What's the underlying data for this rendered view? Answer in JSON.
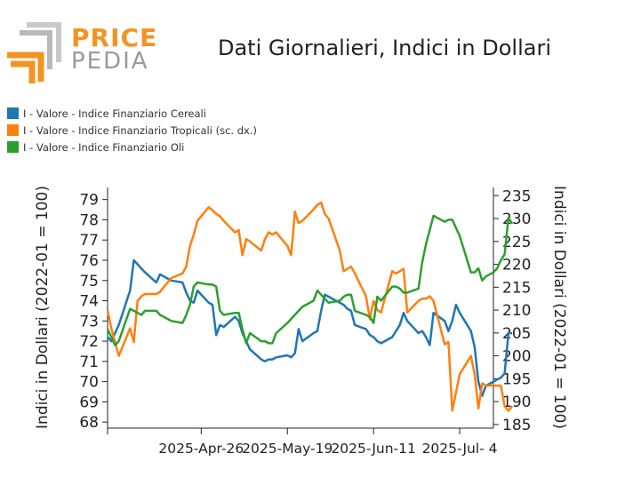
{
  "logo": {
    "word1": "PRICE",
    "word2": "PEDIA"
  },
  "colors": {
    "series1": "#1f77b4",
    "series2": "#ff7f0e",
    "series3": "#2ca02c",
    "logo_orange": "#f29422",
    "logo_grey": "#9a9a9a"
  },
  "chart_data": {
    "type": "line",
    "title": "Dati Giornalieri, Indici in Dollari",
    "ylabel": "Indici in Dollari (2022-01 = 100)",
    "y2label": "Indici in Dollari (2022-01 = 100)",
    "ylim": [
      67.7,
      79.6
    ],
    "y2lim": [
      184.2,
      236.8
    ],
    "yticks": [
      68,
      69,
      70,
      71,
      72,
      73,
      74,
      75,
      76,
      77,
      78,
      79
    ],
    "y2ticks": [
      185,
      190,
      195,
      200,
      205,
      210,
      215,
      220,
      225,
      230,
      235
    ],
    "xlim": [
      "2025-04-01",
      "2025-07-13"
    ],
    "xticks": [
      {
        "date": "2025-04-26",
        "label": "2025-Apr-26"
      },
      {
        "date": "2025-05-19",
        "label": "2025-May-19"
      },
      {
        "date": "2025-06-11",
        "label": "2025-Jun-11"
      },
      {
        "date": "2025-07-04",
        "label": "2025-Jul- 4"
      }
    ],
    "legend_position": "top-left",
    "series": [
      {
        "name": "I - Valore - Indice Finanziario Cereali",
        "color": "#1f77b4",
        "axis": "left",
        "points": [
          [
            "2025-04-01",
            72.2
          ],
          [
            "2025-04-02",
            72.0
          ],
          [
            "2025-04-03",
            72.4
          ],
          [
            "2025-04-04",
            72.8
          ],
          [
            "2025-04-07",
            74.5
          ],
          [
            "2025-04-08",
            76.0
          ],
          [
            "2025-04-09",
            75.8
          ],
          [
            "2025-04-10",
            75.6
          ],
          [
            "2025-04-11",
            75.4
          ],
          [
            "2025-04-14",
            74.9
          ],
          [
            "2025-04-15",
            75.3
          ],
          [
            "2025-04-16",
            75.2
          ],
          [
            "2025-04-17",
            75.1
          ],
          [
            "2025-04-18",
            75.0
          ],
          [
            "2025-04-21",
            74.9
          ],
          [
            "2025-04-22",
            74.4
          ],
          [
            "2025-04-23",
            74.0
          ],
          [
            "2025-04-24",
            73.9
          ],
          [
            "2025-04-25",
            74.5
          ],
          [
            "2025-04-28",
            73.9
          ],
          [
            "2025-04-29",
            73.8
          ],
          [
            "2025-04-30",
            72.3
          ],
          [
            "2025-05-01",
            72.8
          ],
          [
            "2025-05-02",
            72.7
          ],
          [
            "2025-05-05",
            73.2
          ],
          [
            "2025-05-06",
            73.0
          ],
          [
            "2025-05-07",
            72.4
          ],
          [
            "2025-05-08",
            72.0
          ],
          [
            "2025-05-09",
            71.6
          ],
          [
            "2025-05-12",
            71.1
          ],
          [
            "2025-05-13",
            71.0
          ],
          [
            "2025-05-14",
            71.1
          ],
          [
            "2025-05-15",
            71.1
          ],
          [
            "2025-05-16",
            71.2
          ],
          [
            "2025-05-19",
            71.3
          ],
          [
            "2025-05-20",
            71.2
          ],
          [
            "2025-05-21",
            71.4
          ],
          [
            "2025-05-22",
            72.6
          ],
          [
            "2025-05-23",
            72.0
          ],
          [
            "2025-05-26",
            72.4
          ],
          [
            "2025-05-27",
            72.5
          ],
          [
            "2025-05-28",
            73.5
          ],
          [
            "2025-05-29",
            74.3
          ],
          [
            "2025-05-30",
            74.2
          ],
          [
            "2025-06-02",
            73.9
          ],
          [
            "2025-06-03",
            73.8
          ],
          [
            "2025-06-04",
            73.6
          ],
          [
            "2025-06-05",
            73.5
          ],
          [
            "2025-06-06",
            72.8
          ],
          [
            "2025-06-09",
            72.6
          ],
          [
            "2025-06-10",
            72.3
          ],
          [
            "2025-06-11",
            72.2
          ],
          [
            "2025-06-12",
            72.0
          ],
          [
            "2025-06-13",
            71.9
          ],
          [
            "2025-06-16",
            72.2
          ],
          [
            "2025-06-17",
            72.5
          ],
          [
            "2025-06-18",
            72.8
          ],
          [
            "2025-06-19",
            73.4
          ],
          [
            "2025-06-20",
            73.0
          ],
          [
            "2025-06-23",
            72.4
          ],
          [
            "2025-06-24",
            72.5
          ],
          [
            "2025-06-25",
            72.2
          ],
          [
            "2025-06-26",
            71.8
          ],
          [
            "2025-06-27",
            73.4
          ],
          [
            "2025-06-30",
            73.0
          ],
          [
            "2025-07-01",
            72.5
          ],
          [
            "2025-07-02",
            73.0
          ],
          [
            "2025-07-03",
            73.8
          ],
          [
            "2025-07-04",
            73.4
          ],
          [
            "2025-07-07",
            72.5
          ],
          [
            "2025-07-08",
            71.7
          ],
          [
            "2025-07-09",
            70.0
          ],
          [
            "2025-07-10",
            69.3
          ],
          [
            "2025-07-11",
            69.8
          ],
          [
            "2025-07-13",
            70.0
          ],
          [
            "2025-07-14",
            70.1
          ],
          [
            "2025-07-15",
            70.2
          ],
          [
            "2025-07-16",
            70.4
          ],
          [
            "2025-07-17",
            72.4
          ],
          [
            "2025-07-18",
            72.4
          ]
        ]
      },
      {
        "name": "I - Valore - Indice Finanziario Tropicali (sc. dx.)",
        "color": "#ff7f0e",
        "axis": "right",
        "points": [
          [
            "2025-04-01",
            210.0
          ],
          [
            "2025-04-02",
            206.0
          ],
          [
            "2025-04-03",
            203.0
          ],
          [
            "2025-04-04",
            200.0
          ],
          [
            "2025-04-07",
            206.0
          ],
          [
            "2025-04-08",
            203.0
          ],
          [
            "2025-04-09",
            212.0
          ],
          [
            "2025-04-10",
            213.0
          ],
          [
            "2025-04-11",
            213.5
          ],
          [
            "2025-04-14",
            213.5
          ],
          [
            "2025-04-15",
            214.0
          ],
          [
            "2025-04-16",
            215.0
          ],
          [
            "2025-04-17",
            216.0
          ],
          [
            "2025-04-18",
            217.0
          ],
          [
            "2025-04-21",
            218.0
          ],
          [
            "2025-04-22",
            219.5
          ],
          [
            "2025-04-23",
            224.0
          ],
          [
            "2025-04-24",
            226.5
          ],
          [
            "2025-04-25",
            229.5
          ],
          [
            "2025-04-28",
            232.5
          ],
          [
            "2025-04-29",
            231.8
          ],
          [
            "2025-04-30",
            231.0
          ],
          [
            "2025-05-01",
            230.5
          ],
          [
            "2025-05-02",
            229.5
          ],
          [
            "2025-05-05",
            227.0
          ],
          [
            "2025-05-06",
            227.5
          ],
          [
            "2025-05-07",
            222.0
          ],
          [
            "2025-05-08",
            225.5
          ],
          [
            "2025-05-09",
            225.0
          ],
          [
            "2025-05-12",
            223.0
          ],
          [
            "2025-05-13",
            225.5
          ],
          [
            "2025-05-14",
            227.0
          ],
          [
            "2025-05-15",
            226.5
          ],
          [
            "2025-05-16",
            227.0
          ],
          [
            "2025-05-19",
            224.0
          ],
          [
            "2025-05-20",
            222.0
          ],
          [
            "2025-05-21",
            231.5
          ],
          [
            "2025-05-22",
            229.0
          ],
          [
            "2025-05-23",
            229.5
          ],
          [
            "2025-05-26",
            232.0
          ],
          [
            "2025-05-27",
            233.0
          ],
          [
            "2025-05-28",
            233.5
          ],
          [
            "2025-05-29",
            231.0
          ],
          [
            "2025-05-30",
            230.0
          ],
          [
            "2025-06-02",
            223.0
          ],
          [
            "2025-06-03",
            218.5
          ],
          [
            "2025-06-04",
            219.0
          ],
          [
            "2025-06-05",
            219.5
          ],
          [
            "2025-06-06",
            218.0
          ],
          [
            "2025-06-09",
            213.0
          ],
          [
            "2025-06-10",
            208.0
          ],
          [
            "2025-06-11",
            212.0
          ],
          [
            "2025-06-12",
            210.0
          ],
          [
            "2025-06-13",
            209.5
          ],
          [
            "2025-06-16",
            218.5
          ],
          [
            "2025-06-17",
            218.0
          ],
          [
            "2025-06-18",
            218.5
          ],
          [
            "2025-06-19",
            219.0
          ],
          [
            "2025-06-20",
            209.5
          ],
          [
            "2025-06-23",
            212.0
          ],
          [
            "2025-06-24",
            212.5
          ],
          [
            "2025-06-25",
            212.5
          ],
          [
            "2025-06-26",
            213.0
          ],
          [
            "2025-06-27",
            212.0
          ],
          [
            "2025-06-30",
            202.5
          ],
          [
            "2025-07-01",
            203.0
          ],
          [
            "2025-07-02",
            188.0
          ],
          [
            "2025-07-03",
            192.0
          ],
          [
            "2025-07-04",
            196.0
          ],
          [
            "2025-07-07",
            200.0
          ],
          [
            "2025-07-08",
            196.0
          ],
          [
            "2025-07-09",
            188.5
          ],
          [
            "2025-07-10",
            194.0
          ],
          [
            "2025-07-11",
            193.5
          ],
          [
            "2025-07-13",
            193.5
          ],
          [
            "2025-07-14",
            193.5
          ],
          [
            "2025-07-15",
            193.5
          ],
          [
            "2025-07-16",
            189.0
          ],
          [
            "2025-07-17",
            188.0
          ],
          [
            "2025-07-18",
            189.0
          ]
        ]
      },
      {
        "name": "I - Valore - Indice Finanziario Oli",
        "color": "#2ca02c",
        "axis": "left",
        "points": [
          [
            "2025-04-01",
            72.6
          ],
          [
            "2025-04-02",
            72.2
          ],
          [
            "2025-04-03",
            71.8
          ],
          [
            "2025-04-04",
            72.0
          ],
          [
            "2025-04-07",
            73.6
          ],
          [
            "2025-04-08",
            73.5
          ],
          [
            "2025-04-09",
            73.4
          ],
          [
            "2025-04-10",
            73.3
          ],
          [
            "2025-04-11",
            73.5
          ],
          [
            "2025-04-14",
            73.5
          ],
          [
            "2025-04-15",
            73.3
          ],
          [
            "2025-04-16",
            73.2
          ],
          [
            "2025-04-17",
            73.1
          ],
          [
            "2025-04-18",
            73.0
          ],
          [
            "2025-04-21",
            72.9
          ],
          [
            "2025-04-22",
            73.3
          ],
          [
            "2025-04-23",
            73.8
          ],
          [
            "2025-04-24",
            74.7
          ],
          [
            "2025-04-25",
            74.9
          ],
          [
            "2025-04-28",
            74.8
          ],
          [
            "2025-04-29",
            74.8
          ],
          [
            "2025-04-30",
            74.7
          ],
          [
            "2025-05-01",
            73.5
          ],
          [
            "2025-05-02",
            73.3
          ],
          [
            "2025-05-05",
            73.4
          ],
          [
            "2025-05-06",
            73.4
          ],
          [
            "2025-05-07",
            72.6
          ],
          [
            "2025-05-08",
            71.9
          ],
          [
            "2025-05-09",
            72.4
          ],
          [
            "2025-05-12",
            72.0
          ],
          [
            "2025-05-13",
            72.0
          ],
          [
            "2025-05-14",
            71.9
          ],
          [
            "2025-05-15",
            71.9
          ],
          [
            "2025-05-16",
            72.4
          ],
          [
            "2025-05-19",
            72.9
          ],
          [
            "2025-05-20",
            73.1
          ],
          [
            "2025-05-21",
            73.3
          ],
          [
            "2025-05-22",
            73.5
          ],
          [
            "2025-05-23",
            73.7
          ],
          [
            "2025-05-26",
            74.0
          ],
          [
            "2025-05-27",
            74.5
          ],
          [
            "2025-05-28",
            74.3
          ],
          [
            "2025-05-29",
            74.1
          ],
          [
            "2025-05-30",
            73.9
          ],
          [
            "2025-06-02",
            74.0
          ],
          [
            "2025-06-03",
            74.2
          ],
          [
            "2025-06-04",
            74.3
          ],
          [
            "2025-06-05",
            74.3
          ],
          [
            "2025-06-06",
            73.5
          ],
          [
            "2025-06-09",
            73.3
          ],
          [
            "2025-06-10",
            73.2
          ],
          [
            "2025-06-11",
            72.9
          ],
          [
            "2025-06-12",
            74.2
          ],
          [
            "2025-06-13",
            74.0
          ],
          [
            "2025-06-16",
            74.7
          ],
          [
            "2025-06-17",
            74.7
          ],
          [
            "2025-06-18",
            74.6
          ],
          [
            "2025-06-19",
            74.4
          ],
          [
            "2025-06-20",
            74.4
          ],
          [
            "2025-06-23",
            74.6
          ],
          [
            "2025-06-24",
            75.9
          ],
          [
            "2025-06-25",
            76.8
          ],
          [
            "2025-06-26",
            77.5
          ],
          [
            "2025-06-27",
            78.2
          ],
          [
            "2025-06-30",
            77.9
          ],
          [
            "2025-07-01",
            78.0
          ],
          [
            "2025-07-02",
            78.0
          ],
          [
            "2025-07-03",
            77.6
          ],
          [
            "2025-07-04",
            77.2
          ],
          [
            "2025-07-07",
            75.4
          ],
          [
            "2025-07-08",
            75.4
          ],
          [
            "2025-07-09",
            75.6
          ],
          [
            "2025-07-10",
            75.0
          ],
          [
            "2025-07-11",
            75.2
          ],
          [
            "2025-07-13",
            75.4
          ],
          [
            "2025-07-14",
            75.6
          ],
          [
            "2025-07-15",
            76.0
          ],
          [
            "2025-07-16",
            76.3
          ],
          [
            "2025-07-17",
            78.1
          ],
          [
            "2025-07-18",
            77.8
          ]
        ]
      }
    ]
  }
}
